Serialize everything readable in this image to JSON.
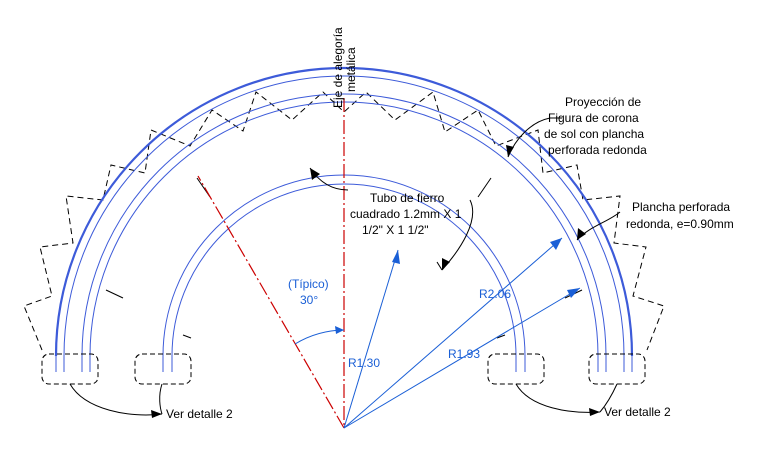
{
  "labels": {
    "axis_line1": "Eje de alegoría",
    "axis_line2": "metálica",
    "crown_line1": "Proyección de",
    "crown_line2": "Figura de corona",
    "crown_line3": "de sol con plancha",
    "crown_line4": "perforada redonda",
    "plate_line1": "Plancha perforada",
    "plate_line2": "redonda, e=0.90mm",
    "tube_line1": "Tubo de fierro",
    "tube_line2": "cuadrado 1.2mm X 1",
    "tube_line3": "1/2\" X 1 1/2\"",
    "typical": "(Típico)",
    "angle": "30°",
    "r_inner": "R1.30",
    "r_mid": "R1.93",
    "r_outer": "R2.06",
    "detail_left": "Ver detalle 2",
    "detail_right": "Ver detalle 2"
  },
  "colors": {
    "line": "#000000",
    "dimension": "#1a5fd6",
    "axis": "#cc0000",
    "arc": "#3d5bd9"
  }
}
